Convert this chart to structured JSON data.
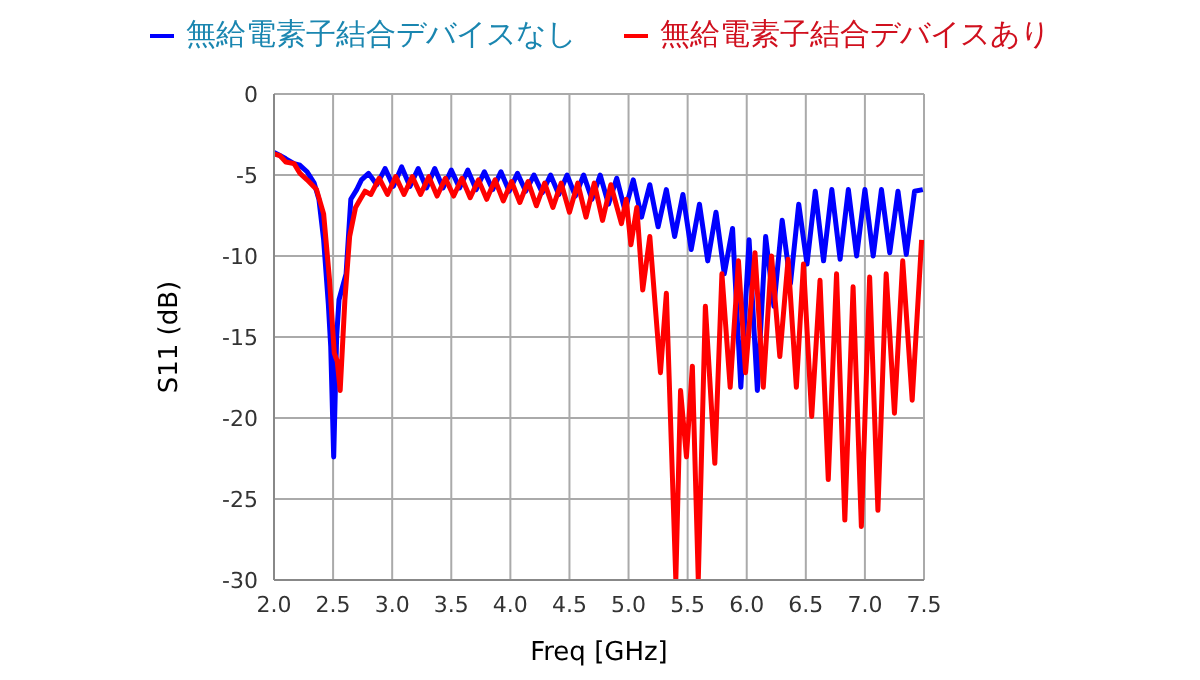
{
  "chart_data": {
    "type": "line",
    "xlabel": "Freq [GHz]",
    "ylabel": "S11 (dB)",
    "xlim": [
      2.0,
      7.5
    ],
    "xticks": [
      {
        "value": 2.0,
        "label": "2.0"
      },
      {
        "value": 2.5,
        "label": "2.5"
      },
      {
        "value": 3.0,
        "label": "3.0"
      },
      {
        "value": 3.5,
        "label": "3.5"
      },
      {
        "value": 4.0,
        "label": "4.0"
      },
      {
        "value": 4.5,
        "label": "4.5"
      },
      {
        "value": 5.0,
        "label": "5.0"
      },
      {
        "value": 5.5,
        "label": "5.5"
      },
      {
        "value": 6.0,
        "label": "6.0"
      },
      {
        "value": 6.5,
        "label": "6.5"
      },
      {
        "value": 7.0,
        "label": "7.0"
      },
      {
        "value": 7.5,
        "label": "7.5"
      }
    ],
    "ylim": [
      -30,
      0
    ],
    "yticks": [
      -30,
      -25,
      -20,
      -15,
      -10,
      -5,
      0
    ],
    "grid": true,
    "legend": "top",
    "marker": "none",
    "line_style": "solid",
    "series": [
      {
        "name": "無給電素子結合デバイスなし",
        "color": "#0000ff",
        "x": [
          2.0,
          2.05,
          2.1,
          2.17,
          2.22,
          2.28,
          2.34,
          2.38,
          2.42,
          2.46,
          2.48,
          2.505,
          2.53,
          2.55,
          2.61,
          2.65,
          2.7,
          2.74,
          2.8,
          2.87,
          2.94,
          3.01,
          3.08,
          3.15,
          3.22,
          3.29,
          3.36,
          3.43,
          3.5,
          3.57,
          3.64,
          3.71,
          3.78,
          3.85,
          3.92,
          3.99,
          4.06,
          4.13,
          4.2,
          4.27,
          4.34,
          4.41,
          4.48,
          4.55,
          4.62,
          4.69,
          4.76,
          4.83,
          4.9,
          4.97,
          5.04,
          5.11,
          5.18,
          5.25,
          5.32,
          5.39,
          5.46,
          5.53,
          5.6,
          5.67,
          5.74,
          5.81,
          5.88,
          5.95,
          6.02,
          6.09,
          6.16,
          6.23,
          6.3,
          6.37,
          6.44,
          6.51,
          6.58,
          6.65,
          6.72,
          6.79,
          6.86,
          6.93,
          7.0,
          7.07,
          7.14,
          7.21,
          7.28,
          7.35,
          7.42,
          7.49
        ],
        "values": [
          -3.6,
          -3.8,
          -4.0,
          -4.3,
          -4.4,
          -4.8,
          -5.5,
          -6.5,
          -9,
          -13,
          -15.6,
          -22.4,
          -15,
          -12.7,
          -11.1,
          -6.5,
          -5.9,
          -5.3,
          -4.9,
          -5.6,
          -4.6,
          -5.7,
          -4.5,
          -5.7,
          -4.6,
          -5.8,
          -4.6,
          -5.8,
          -4.7,
          -5.8,
          -4.7,
          -5.9,
          -4.8,
          -5.9,
          -4.8,
          -6.0,
          -4.9,
          -6.0,
          -5.0,
          -6.1,
          -5.0,
          -6.2,
          -5.0,
          -6.3,
          -5.0,
          -6.5,
          -5.0,
          -6.8,
          -5.2,
          -7.2,
          -5.3,
          -7.6,
          -5.6,
          -8.2,
          -5.9,
          -8.8,
          -6.2,
          -9.6,
          -6.8,
          -10.3,
          -7.3,
          -11.1,
          -8.3,
          -18.1,
          -9.0,
          -18.3,
          -8.8,
          -13.1,
          -7.8,
          -11.7,
          -6.8,
          -10.5,
          -6.0,
          -10.3,
          -5.9,
          -10.2,
          -5.9,
          -10.0,
          -5.9,
          -10.0,
          -5.9,
          -9.8,
          -6.0,
          -9.9,
          -6.0,
          -5.9
        ]
      },
      {
        "name": "無給電素子結合デバイスあり",
        "color": "#ff0000",
        "x": [
          2.0,
          2.05,
          2.1,
          2.17,
          2.22,
          2.28,
          2.36,
          2.42,
          2.47,
          2.51,
          2.535,
          2.56,
          2.6,
          2.64,
          2.69,
          2.73,
          2.77,
          2.82,
          2.89,
          2.96,
          3.03,
          3.1,
          3.17,
          3.24,
          3.31,
          3.38,
          3.45,
          3.52,
          3.59,
          3.66,
          3.73,
          3.8,
          3.87,
          3.94,
          4.01,
          4.08,
          4.15,
          4.22,
          4.29,
          4.36,
          4.43,
          4.5,
          4.57,
          4.64,
          4.71,
          4.78,
          4.85,
          4.94,
          4.98,
          5.02,
          5.07,
          5.12,
          5.18,
          5.27,
          5.32,
          5.4,
          5.44,
          5.49,
          5.54,
          5.59,
          5.65,
          5.73,
          5.79,
          5.86,
          5.93,
          5.99,
          6.07,
          6.14,
          6.21,
          6.28,
          6.35,
          6.42,
          6.48,
          6.55,
          6.62,
          6.69,
          6.76,
          6.83,
          6.9,
          6.97,
          7.04,
          7.11,
          7.18,
          7.25,
          7.32,
          7.4,
          7.48
        ],
        "values": [
          -3.7,
          -3.8,
          -4.2,
          -4.3,
          -4.9,
          -5.3,
          -5.9,
          -7.4,
          -11.5,
          -16,
          -16.5,
          -18.3,
          -12.7,
          -8.8,
          -7.0,
          -6.5,
          -6.0,
          -6.2,
          -5.2,
          -6.2,
          -5.1,
          -6.2,
          -5.1,
          -6.2,
          -5.1,
          -6.3,
          -5.2,
          -6.3,
          -5.2,
          -6.4,
          -5.3,
          -6.5,
          -5.3,
          -6.6,
          -5.4,
          -6.7,
          -5.4,
          -6.9,
          -5.5,
          -7.0,
          -5.5,
          -7.3,
          -5.5,
          -7.6,
          -5.5,
          -7.8,
          -5.6,
          -8.0,
          -6.5,
          -9.3,
          -7.0,
          -12.1,
          -8.8,
          -17.2,
          -12.3,
          -30,
          -18.3,
          -22.4,
          -16.8,
          -30,
          -13.1,
          -22.8,
          -11.1,
          -18.1,
          -10.3,
          -17.2,
          -9.8,
          -18.1,
          -10.0,
          -16.2,
          -10.2,
          -18.1,
          -10.5,
          -19.9,
          -11.5,
          -23.8,
          -11.1,
          -26.3,
          -11.9,
          -26.7,
          -11.3,
          -25.7,
          -11.1,
          -19.7,
          -10.3,
          -18.9,
          -9.0
        ]
      }
    ]
  }
}
